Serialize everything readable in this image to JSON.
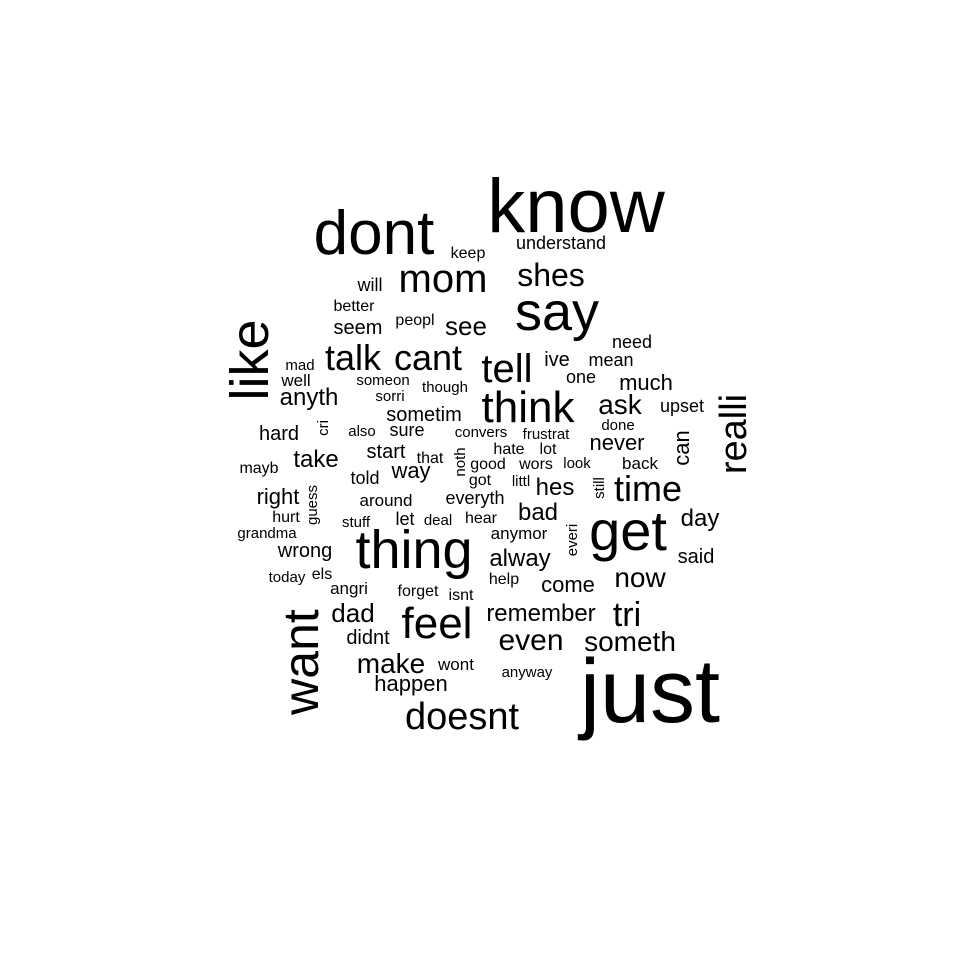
{
  "words": [
    {
      "text": "know"
    },
    {
      "text": "just"
    },
    {
      "text": "dont"
    },
    {
      "text": "thing"
    },
    {
      "text": "get"
    },
    {
      "text": "say"
    },
    {
      "text": "like"
    },
    {
      "text": "want"
    },
    {
      "text": "think"
    },
    {
      "text": "feel"
    },
    {
      "text": "realli"
    },
    {
      "text": "mom"
    },
    {
      "text": "doesnt"
    },
    {
      "text": "cant"
    },
    {
      "text": "talk"
    },
    {
      "text": "tell"
    },
    {
      "text": "time"
    },
    {
      "text": "shes"
    },
    {
      "text": "tri"
    },
    {
      "text": "someth"
    },
    {
      "text": "even"
    },
    {
      "text": "ask"
    },
    {
      "text": "now"
    },
    {
      "text": "dad"
    },
    {
      "text": "make"
    },
    {
      "text": "see"
    },
    {
      "text": "remember"
    },
    {
      "text": "alway"
    },
    {
      "text": "anyth"
    },
    {
      "text": "take"
    },
    {
      "text": "hes"
    },
    {
      "text": "bad"
    },
    {
      "text": "day"
    },
    {
      "text": "much"
    },
    {
      "text": "never"
    },
    {
      "text": "come"
    },
    {
      "text": "sometim"
    },
    {
      "text": "happen"
    },
    {
      "text": "right"
    },
    {
      "text": "seem"
    },
    {
      "text": "wrong"
    },
    {
      "text": "hard"
    },
    {
      "text": "can"
    },
    {
      "text": "everyth"
    },
    {
      "text": "start"
    },
    {
      "text": "way"
    },
    {
      "text": "said"
    },
    {
      "text": "ive"
    },
    {
      "text": "didnt"
    },
    {
      "text": "one"
    },
    {
      "text": "upset"
    },
    {
      "text": "need"
    },
    {
      "text": "mean"
    },
    {
      "text": "will"
    },
    {
      "text": "told"
    },
    {
      "text": "understand"
    },
    {
      "text": "sure"
    },
    {
      "text": "keep"
    },
    {
      "text": "back"
    },
    {
      "text": "anymor"
    },
    {
      "text": "well"
    },
    {
      "text": "wont"
    },
    {
      "text": "around"
    },
    {
      "text": "angri"
    },
    {
      "text": "let"
    },
    {
      "text": "hear"
    },
    {
      "text": "help"
    },
    {
      "text": "mayb"
    },
    {
      "text": "better"
    },
    {
      "text": "peopl"
    },
    {
      "text": "isnt"
    },
    {
      "text": "forget"
    },
    {
      "text": "hate"
    },
    {
      "text": "lot"
    },
    {
      "text": "good"
    },
    {
      "text": "wors"
    },
    {
      "text": "got"
    },
    {
      "text": "that"
    },
    {
      "text": "frustrat"
    },
    {
      "text": "convers"
    },
    {
      "text": "someon"
    },
    {
      "text": "anyway"
    },
    {
      "text": "grandma"
    },
    {
      "text": "today"
    },
    {
      "text": "els"
    },
    {
      "text": "stuff"
    },
    {
      "text": "deal"
    },
    {
      "text": "hurt"
    },
    {
      "text": "though"
    },
    {
      "text": "sorri"
    },
    {
      "text": "mad"
    },
    {
      "text": "also"
    },
    {
      "text": "look"
    },
    {
      "text": "done"
    },
    {
      "text": "littl"
    },
    {
      "text": "guess"
    },
    {
      "text": "cri"
    },
    {
      "text": "noth"
    },
    {
      "text": "everi"
    },
    {
      "text": "still"
    }
  ]
}
